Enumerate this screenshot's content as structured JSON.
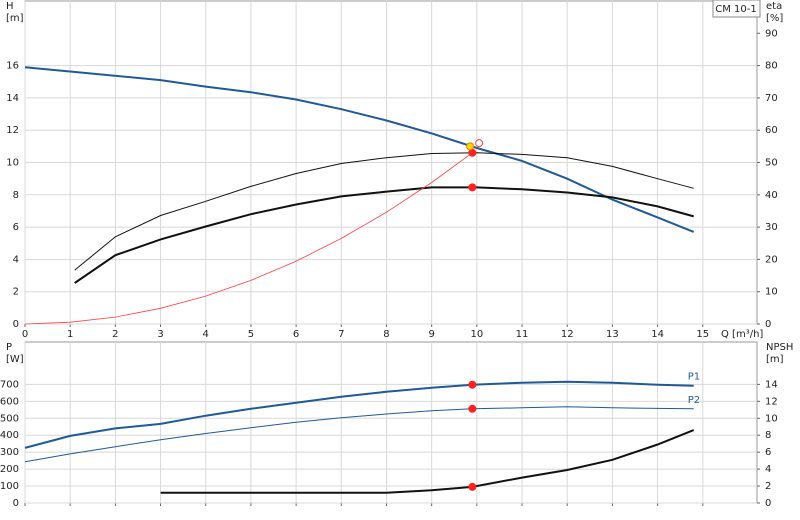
{
  "chart_data": [
    {
      "type": "line",
      "title": "CM 10-1",
      "ylabel": [
        "H",
        "[m]"
      ],
      "y2label": [
        "eta",
        "[%]"
      ],
      "xlabel": "Q [m³/h]",
      "xlim": [
        0,
        16.2
      ],
      "xticks": [
        0,
        1,
        2,
        3,
        4,
        5,
        6,
        7,
        8,
        9,
        10,
        11,
        12,
        13,
        14,
        15
      ],
      "ylim": [
        0,
        20
      ],
      "yticks": [
        0,
        2,
        4,
        6,
        8,
        10,
        12,
        14,
        16
      ],
      "y2lim": [
        0,
        100
      ],
      "y2ticks": [
        0,
        10,
        20,
        30,
        40,
        50,
        60,
        70,
        80,
        90
      ],
      "grid": true,
      "series": [
        {
          "color": "#1f5a96",
          "x": [
            0,
            3,
            4,
            5,
            6,
            7,
            8,
            9,
            10,
            11,
            12,
            13,
            14,
            14.8
          ],
          "values": [
            15.9,
            15.1,
            14.7,
            14.35,
            13.9,
            13.3,
            12.6,
            11.8,
            10.9,
            10.1,
            9.0,
            7.7,
            6.6,
            5.7
          ]
        },
        {
          "color": "#111111",
          "axis": "y2",
          "x": [
            1.1,
            2,
            3,
            4,
            5,
            6,
            7,
            8,
            9,
            10,
            11,
            12,
            13,
            14,
            14.8
          ],
          "values": [
            16.7,
            27,
            33.6,
            38,
            42.6,
            46.6,
            49.7,
            51.5,
            52.8,
            53,
            52.5,
            51.5,
            48.8,
            45,
            42
          ]
        },
        {
          "color": "#111111",
          "axis": "y2",
          "x": [
            1.1,
            2,
            3,
            4,
            5,
            6,
            7,
            8,
            9,
            10,
            11,
            12,
            13,
            14,
            14.8
          ],
          "values": [
            12.7,
            21.3,
            26.2,
            30.2,
            34,
            37,
            39.5,
            41,
            42.3,
            42.3,
            41.7,
            40.7,
            39.2,
            36.4,
            33.3
          ]
        },
        {
          "color": "#ff4040",
          "x": [
            0,
            1,
            2,
            3,
            4,
            5,
            6,
            7,
            8,
            9,
            9.9
          ],
          "values": [
            0,
            0.11,
            0.43,
            0.97,
            1.73,
            2.7,
            3.89,
            5.3,
            6.92,
            8.76,
            10.6
          ]
        },
        {
          "mode": "markers",
          "color": "#ff2020",
          "x": [
            9.9
          ],
          "values": [
            10.6
          ]
        },
        {
          "mode": "markers",
          "color": "#ff2020",
          "axis": "y2",
          "x": [
            9.9
          ],
          "values": [
            42.3
          ]
        },
        {
          "mode": "markers",
          "color": "#ffd700",
          "x": [
            9.85
          ],
          "values": [
            11.0
          ]
        },
        {
          "mode": "open-markers",
          "color": "#ff4040",
          "x": [
            10.05
          ],
          "values": [
            11.2
          ]
        }
      ]
    },
    {
      "type": "line",
      "ylabel": [
        "P",
        "[W]"
      ],
      "y2label": [
        "NPSH",
        "[m]"
      ],
      "xlim": [
        0,
        16.2
      ],
      "xticks": [
        0,
        1,
        2,
        3,
        4,
        5,
        6,
        7,
        8,
        9,
        10,
        11,
        12,
        13,
        14,
        15
      ],
      "xtick_labels": false,
      "ylim": [
        0,
        950
      ],
      "yticks": [
        0,
        100,
        200,
        300,
        400,
        500,
        600,
        700
      ],
      "y2lim": [
        0,
        19
      ],
      "y2ticks": [
        0,
        2,
        4,
        6,
        8,
        10,
        12,
        14
      ],
      "grid": true,
      "series": [
        {
          "name": "P1",
          "color": "#1f5a96",
          "x": [
            0,
            1,
            2,
            3,
            4,
            5,
            6,
            7,
            8,
            9,
            9.9,
            11,
            12,
            13,
            14,
            14.8
          ],
          "values": [
            325,
            396,
            440,
            467,
            515,
            556,
            592,
            627,
            657,
            680,
            698,
            710,
            716,
            710,
            698,
            692
          ]
        },
        {
          "name": "P2",
          "color": "#1f5a96",
          "x": [
            0,
            1,
            2,
            3,
            4,
            5,
            6,
            7,
            8,
            9,
            9.9,
            11,
            12,
            13,
            14,
            14.8
          ],
          "values": [
            243,
            290,
            332,
            373,
            410,
            444,
            476,
            503,
            525,
            544,
            556,
            562,
            568,
            562,
            558,
            556
          ]
        },
        {
          "color": "#111111",
          "axis": "y2",
          "x": [
            3,
            8,
            9,
            9.9,
            11,
            12,
            13,
            14,
            14.8
          ],
          "values": [
            1.2,
            1.2,
            1.5,
            1.9,
            3.0,
            3.9,
            5.1,
            6.9,
            8.6
          ]
        },
        {
          "mode": "markers",
          "color": "#ff2020",
          "x": [
            9.9
          ],
          "values": [
            698
          ]
        },
        {
          "mode": "markers",
          "color": "#ff2020",
          "x": [
            9.9
          ],
          "values": [
            556
          ]
        },
        {
          "mode": "markers",
          "color": "#ff2020",
          "axis": "y2",
          "x": [
            9.9
          ],
          "values": [
            1.9
          ]
        }
      ]
    }
  ]
}
